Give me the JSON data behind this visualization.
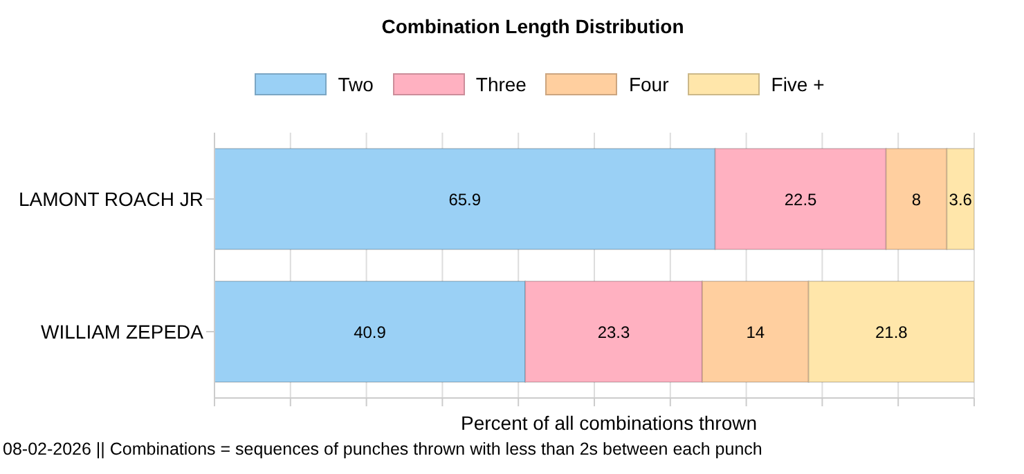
{
  "chart_data": {
    "type": "bar",
    "title": "Combination Length Distribution",
    "orientation": "horizontal",
    "stacked": true,
    "categories": [
      "LAMONT ROACH JR",
      "WILLIAM ZEPEDA"
    ],
    "series": [
      {
        "name": "Two",
        "color": "#9ad0f5",
        "values": [
          65.9,
          40.9
        ]
      },
      {
        "name": "Three",
        "color": "#ffb1c1",
        "values": [
          22.5,
          23.3
        ]
      },
      {
        "name": "Four",
        "color": "#ffcf9f",
        "values": [
          8,
          14
        ]
      },
      {
        "name": "Five +",
        "color": "#ffe6aa",
        "values": [
          3.6,
          21.8
        ]
      }
    ],
    "xlim": [
      0,
      100
    ],
    "xticks": [
      {
        "value": 0,
        "label": null
      },
      {
        "value": 10,
        "label": null
      },
      {
        "value": 20,
        "label": null
      },
      {
        "value": 30,
        "label": null
      },
      {
        "value": 40,
        "label": null
      },
      {
        "value": 50,
        "label": null
      },
      {
        "value": 60,
        "label": null
      },
      {
        "value": 70,
        "label": null
      },
      {
        "value": 80,
        "label": null
      },
      {
        "value": 90,
        "label": null
      },
      {
        "value": 100,
        "label": null
      }
    ],
    "tick_labels": "y",
    "grid": "x",
    "legend": "top",
    "data_labels": true,
    "xlabel": "Percent of all combinations thrown",
    "annotations": [
      "08-02-2026 || Combinations = sequences of punches thrown with less than 2s between each punch"
    ]
  }
}
